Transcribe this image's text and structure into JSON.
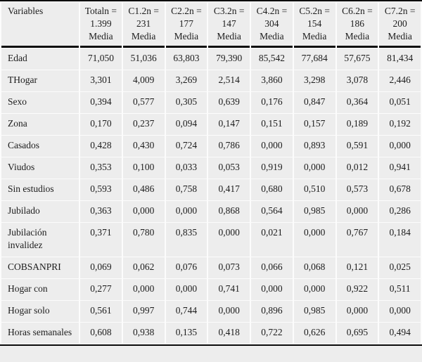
{
  "table": {
    "variables_header": "Variables",
    "subheader": "Media",
    "columns": [
      {
        "label": "Totaln =",
        "n": "1.399"
      },
      {
        "label": "C1.2n =",
        "n": "231"
      },
      {
        "label": "C2.2n =",
        "n": "177"
      },
      {
        "label": "C3.2n =",
        "n": "147"
      },
      {
        "label": "C4.2n =",
        "n": "304"
      },
      {
        "label": "C5.2n =",
        "n": "154"
      },
      {
        "label": "C6.2n =",
        "n": "186"
      },
      {
        "label": "C7.2n =",
        "n": "200"
      }
    ],
    "rows": [
      {
        "variable": "Edad",
        "values": [
          "71,050",
          "51,036",
          "63,803",
          "79,390",
          "85,542",
          "77,684",
          "57,675",
          "81,434"
        ]
      },
      {
        "variable": "THogar",
        "values": [
          "3,301",
          "4,009",
          "3,269",
          "2,514",
          "3,860",
          "3,298",
          "3,078",
          "2,446"
        ]
      },
      {
        "variable": "Sexo",
        "values": [
          "0,394",
          "0,577",
          "0,305",
          "0,639",
          "0,176",
          "0,847",
          "0,364",
          "0,051"
        ]
      },
      {
        "variable": "Zona",
        "values": [
          "0,170",
          "0,237",
          "0,094",
          "0,147",
          "0,151",
          "0,157",
          "0,189",
          "0,192"
        ]
      },
      {
        "variable": "Casados",
        "values": [
          "0,428",
          "0,430",
          "0,724",
          "0,786",
          "0,000",
          "0,893",
          "0,591",
          "0,000"
        ]
      },
      {
        "variable": "Viudos",
        "values": [
          "0,353",
          "0,100",
          "0,033",
          "0,053",
          "0,919",
          "0,000",
          "0,012",
          "0,941"
        ]
      },
      {
        "variable": "Sin estudios",
        "values": [
          "0,593",
          "0,486",
          "0,758",
          "0,417",
          "0,680",
          "0,510",
          "0,573",
          "0,678"
        ]
      },
      {
        "variable": "Jubilado",
        "values": [
          "0,363",
          "0,000",
          "0,000",
          "0,868",
          "0,564",
          "0,985",
          "0,000",
          "0,286"
        ]
      },
      {
        "variable": "Jubilación invalidez",
        "values": [
          "0,371",
          "0,780",
          "0,835",
          "0,000",
          "0,021",
          "0,000",
          "0,767",
          "0,184"
        ]
      },
      {
        "variable": "COBSANPRI",
        "values": [
          "0,069",
          "0,062",
          "0,076",
          "0,073",
          "0,066",
          "0,068",
          "0,121",
          "0,025"
        ]
      },
      {
        "variable": "Hogar con",
        "values": [
          "0,277",
          "0,000",
          "0,000",
          "0,741",
          "0,000",
          "0,000",
          "0,922",
          "0,511"
        ]
      },
      {
        "variable": "Hogar solo",
        "values": [
          "0,561",
          "0,997",
          "0,744",
          "0,000",
          "0,896",
          "0,985",
          "0,000",
          "0,000"
        ]
      },
      {
        "variable": "Horas semanales",
        "values": [
          "0,608",
          "0,938",
          "0,135",
          "0,418",
          "0,722",
          "0,626",
          "0,695",
          "0,494"
        ]
      }
    ],
    "colors": {
      "page_background": "#ededed",
      "separator": "#fcfcfc",
      "rule": "#0a0a0a",
      "text": "#1c1c1c"
    }
  }
}
